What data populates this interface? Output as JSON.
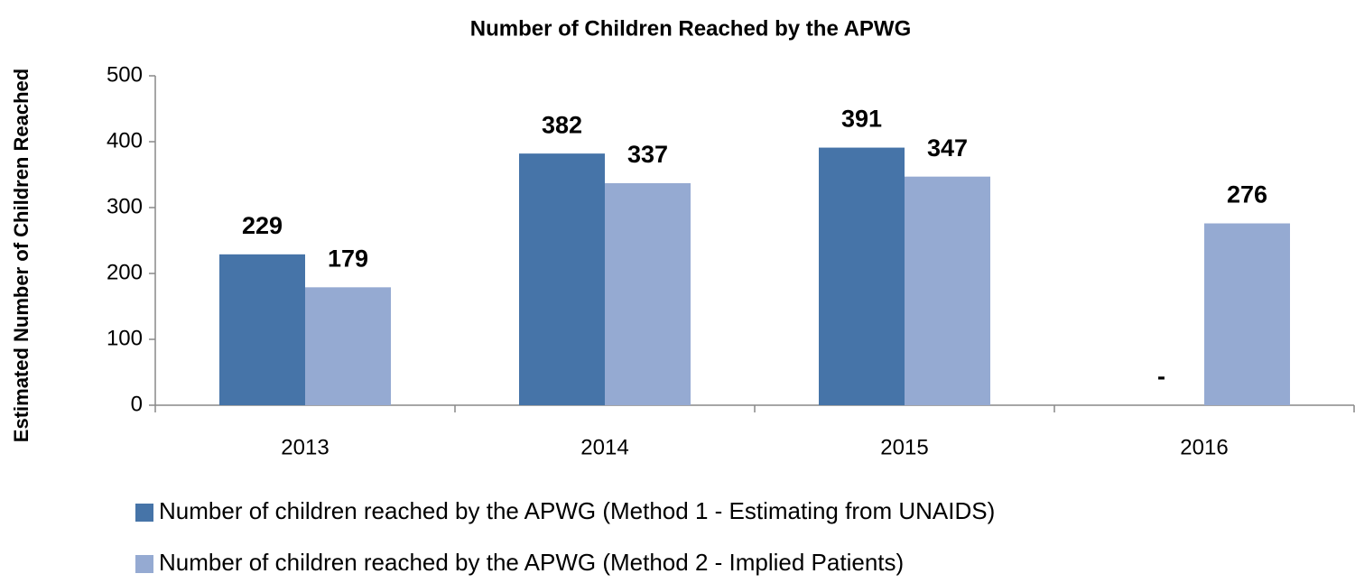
{
  "chart_data": {
    "type": "bar",
    "title": "Number of Children Reached by the APWG",
    "y_label": "Estimated Number of Children Reached",
    "categories": [
      "2013",
      "2014",
      "2015",
      "2016"
    ],
    "series": [
      {
        "name": "Number of children reached by the APWG (Method 1 - Estimating from UNAIDS)",
        "color": "#4674a8",
        "values": [
          229,
          382,
          391,
          0
        ],
        "value_labels": [
          "229",
          "382",
          "391",
          "-"
        ]
      },
      {
        "name": "Number of children reached by the APWG (Method 2 - Implied Patients)",
        "color": "#95aad2",
        "values": [
          179,
          337,
          347,
          276
        ]
      }
    ],
    "ylim": [
      0,
      500
    ],
    "yticks": [
      0,
      100,
      200,
      300,
      400,
      500
    ],
    "grid": false
  }
}
